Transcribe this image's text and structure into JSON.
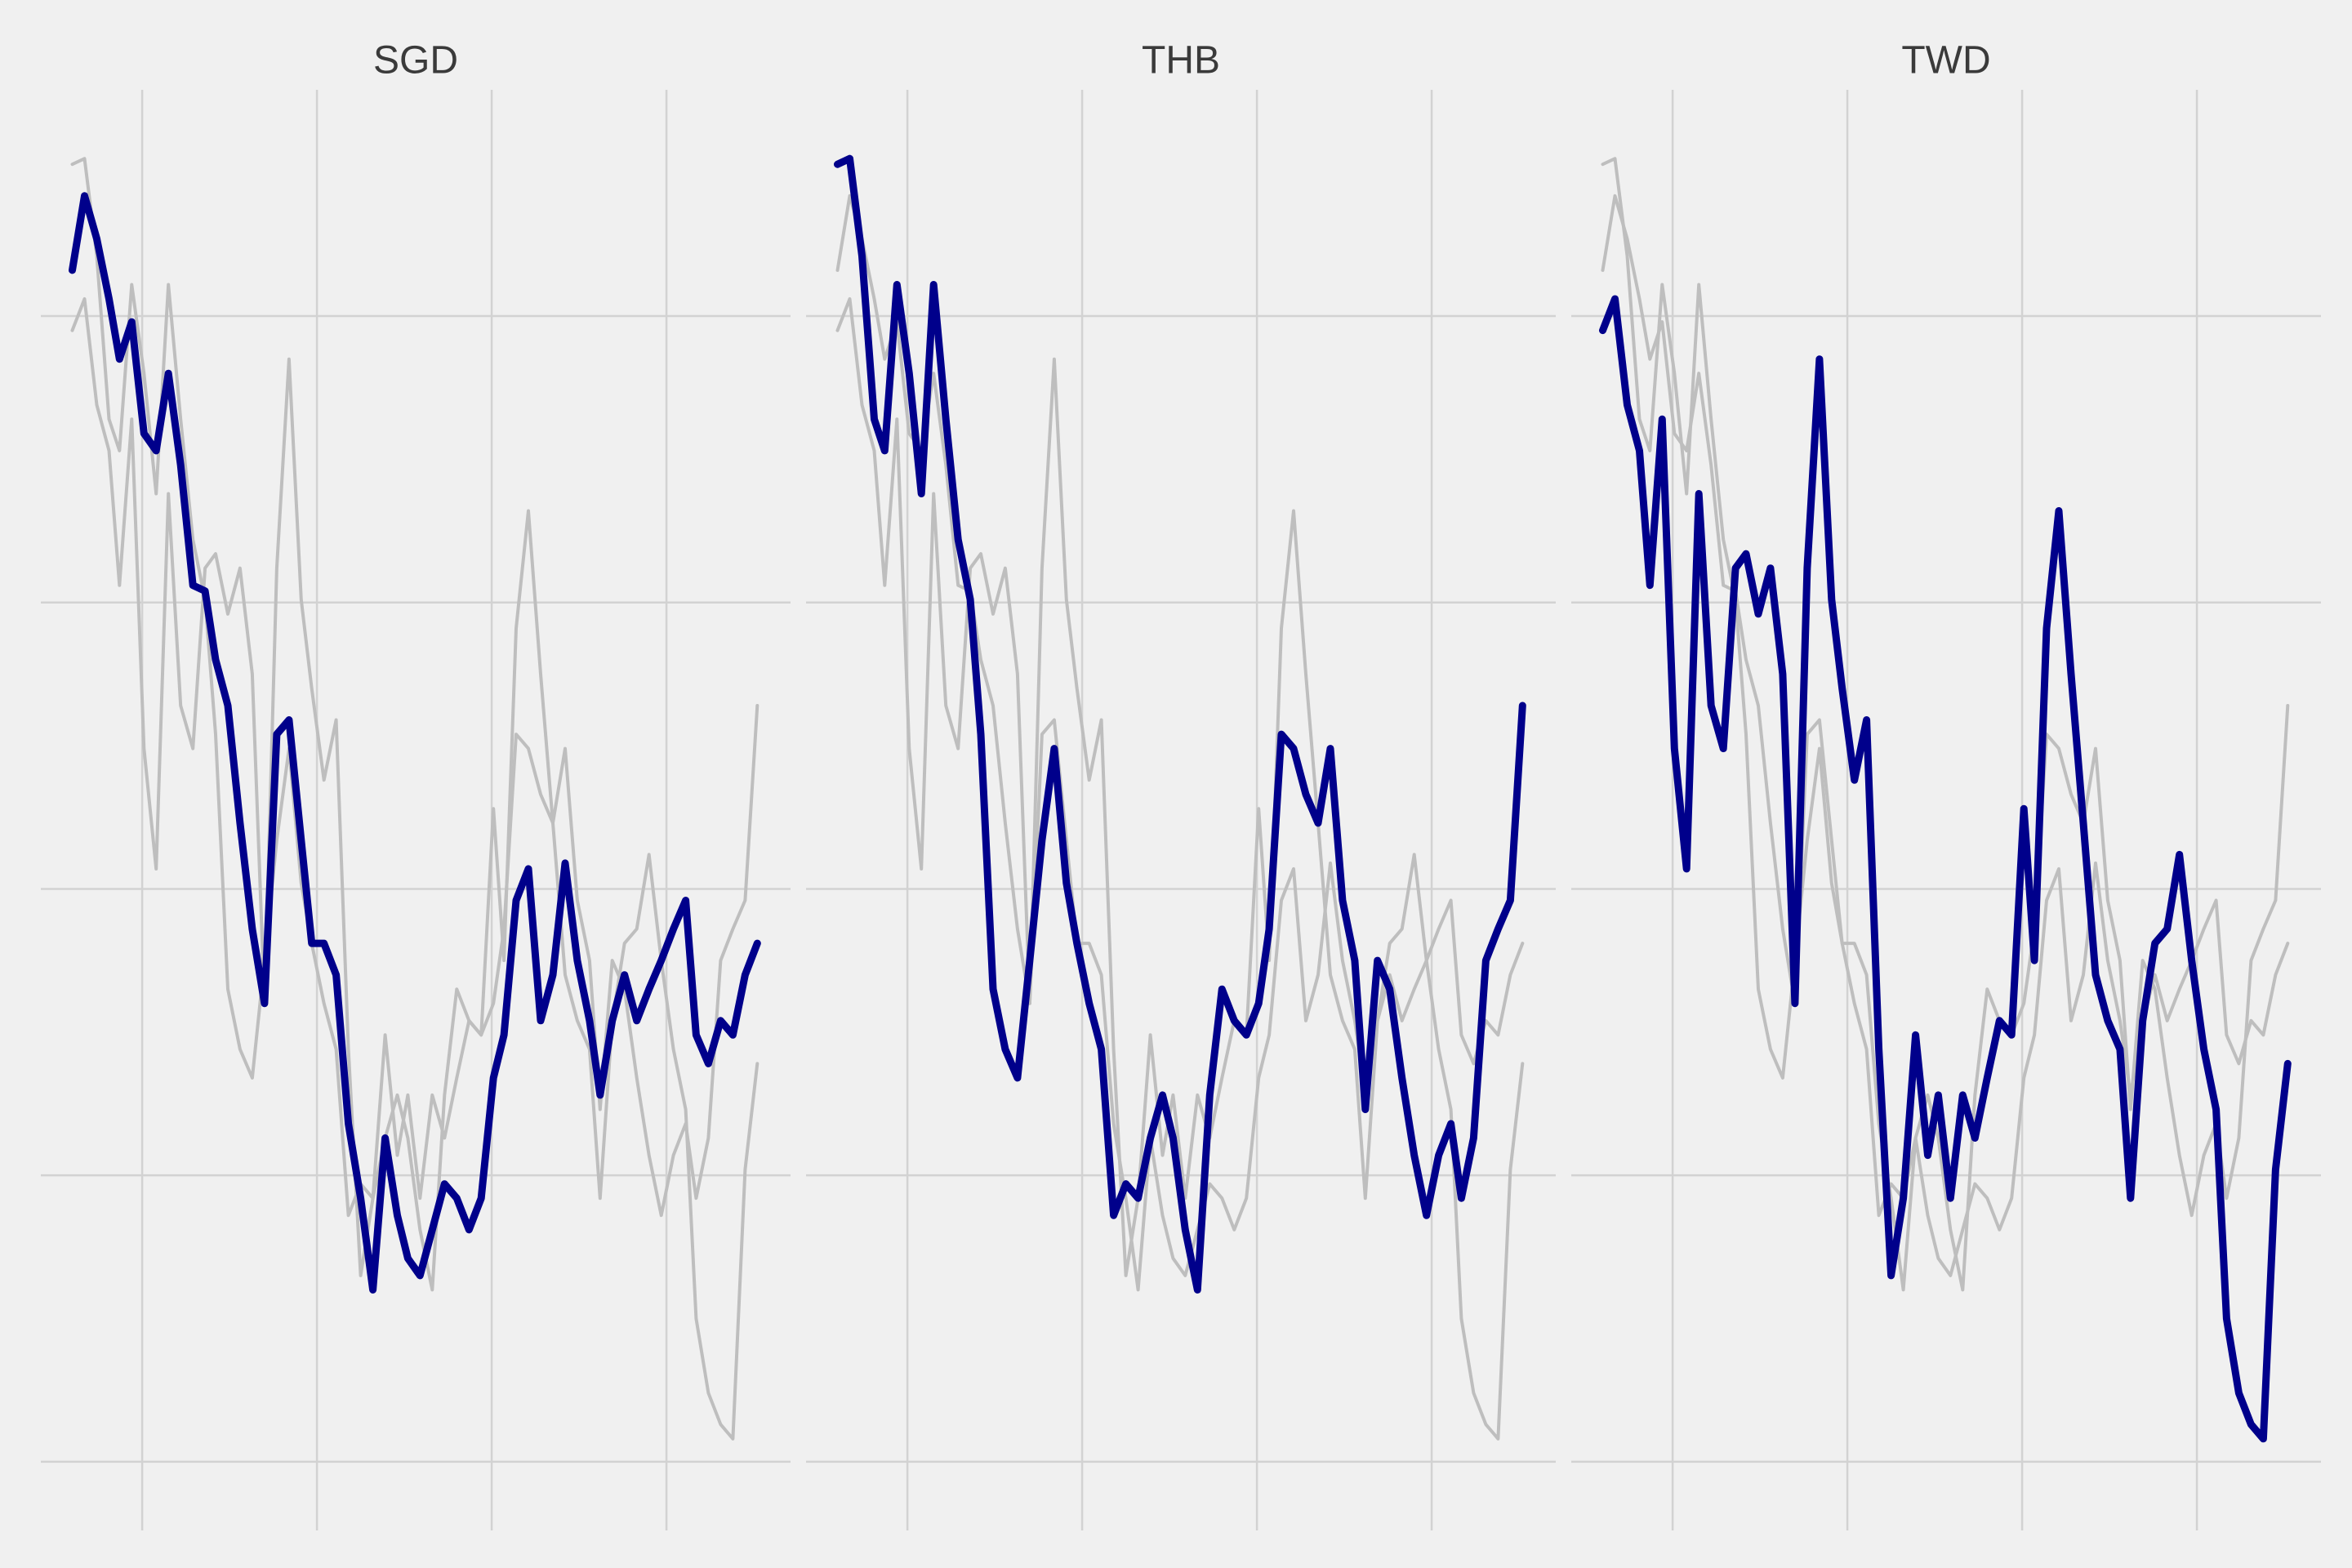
{
  "chart_data": {
    "type": "line",
    "x": [
      0.6,
      0.67,
      0.74,
      0.81,
      0.87,
      0.94,
      1.01,
      1.08,
      1.15,
      1.22,
      1.29,
      1.36,
      1.42,
      1.49,
      1.56,
      1.63,
      1.7,
      1.77,
      1.84,
      1.91,
      1.97,
      2.04,
      2.11,
      2.18,
      2.25,
      2.32,
      2.39,
      2.46,
      2.52,
      2.59,
      2.66,
      2.73,
      2.8,
      2.87,
      2.94,
      3.01,
      3.07,
      3.14,
      3.21,
      3.28,
      3.35,
      3.42,
      3.49,
      3.56,
      3.62,
      3.69,
      3.76,
      3.83,
      3.9,
      3.97,
      4.04,
      4.11,
      4.17,
      4.24,
      4.31,
      4.38,
      4.45,
      4.52
    ],
    "series": [
      {
        "name": "SGD",
        "values": [
          4.16,
          4.42,
          4.27,
          4.06,
          3.85,
          3.98,
          3.59,
          3.53,
          3.8,
          3.48,
          3.06,
          3.04,
          2.8,
          2.64,
          2.23,
          1.86,
          1.6,
          2.54,
          2.59,
          2.17,
          1.81,
          1.81,
          1.7,
          1.18,
          0.92,
          0.6,
          1.13,
          0.86,
          0.71,
          0.65,
          0.81,
          0.97,
          0.92,
          0.81,
          0.92,
          1.34,
          1.49,
          1.96,
          2.07,
          1.54,
          1.7,
          2.09,
          1.75,
          1.54,
          1.28,
          1.54,
          1.7,
          1.54,
          1.65,
          1.75,
          1.86,
          1.96,
          1.49,
          1.39,
          1.54,
          1.49,
          1.7,
          1.81
        ]
      },
      {
        "name": "THB",
        "values": [
          4.53,
          4.55,
          4.21,
          3.64,
          3.53,
          4.11,
          3.8,
          3.38,
          4.11,
          3.64,
          3.22,
          3.01,
          2.54,
          1.65,
          1.44,
          1.34,
          1.75,
          2.17,
          2.49,
          2.02,
          1.81,
          1.6,
          1.44,
          0.86,
          0.97,
          0.92,
          1.13,
          1.28,
          1.13,
          0.81,
          0.6,
          1.28,
          1.65,
          1.54,
          1.49,
          1.6,
          1.86,
          2.54,
          2.49,
          2.33,
          2.23,
          2.49,
          1.96,
          1.75,
          1.23,
          1.75,
          1.65,
          1.34,
          1.07,
          0.86,
          1.07,
          1.18,
          0.92,
          1.13,
          1.75,
          1.86,
          1.96,
          2.64
        ]
      },
      {
        "name": "TWD",
        "values": [
          3.95,
          4.06,
          3.69,
          3.53,
          3.06,
          3.64,
          2.49,
          2.07,
          3.38,
          2.64,
          2.49,
          3.12,
          3.17,
          2.96,
          3.12,
          2.75,
          1.6,
          3.12,
          3.85,
          3.01,
          2.7,
          2.38,
          2.59,
          1.44,
          0.65,
          0.92,
          1.49,
          1.07,
          1.28,
          0.92,
          1.28,
          1.13,
          1.34,
          1.54,
          1.49,
          2.28,
          1.75,
          2.91,
          3.32,
          2.75,
          2.23,
          1.7,
          1.54,
          1.44,
          0.92,
          1.54,
          1.81,
          1.86,
          2.12,
          1.75,
          1.44,
          1.23,
          0.5,
          0.24,
          0.13,
          0.08,
          1.02,
          1.39
        ]
      }
    ],
    "highlight_color": "#00008b",
    "other_color": "#bebebe",
    "xlim": [
      0.42,
      4.71
    ],
    "ylim": [
      -0.24,
      4.79
    ],
    "xticks": [
      1,
      2,
      3,
      4
    ],
    "yticks": [
      0,
      1,
      2,
      3,
      4
    ],
    "grid": true
  }
}
